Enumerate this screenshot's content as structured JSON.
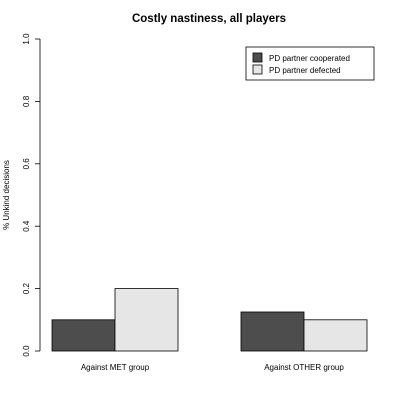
{
  "chart_data": {
    "type": "bar",
    "title": "Costly nastiness, all players",
    "xlabel": "",
    "ylabel": "% Unkind decisions",
    "ylim": [
      0,
      1.0
    ],
    "yticks": [
      "0.0",
      "0.2",
      "0.4",
      "0.6",
      "0.8",
      "1.0"
    ],
    "categories": [
      "Against MET group",
      "Against OTHER group"
    ],
    "series": [
      {
        "name": "PD partner cooperated",
        "color": "#4d4d4d",
        "values": [
          0.1,
          0.125
        ]
      },
      {
        "name": "PD partner defected",
        "color": "#e6e6e6",
        "values": [
          0.2,
          0.1
        ]
      }
    ],
    "grid": false,
    "legend_position": "top-right"
  }
}
